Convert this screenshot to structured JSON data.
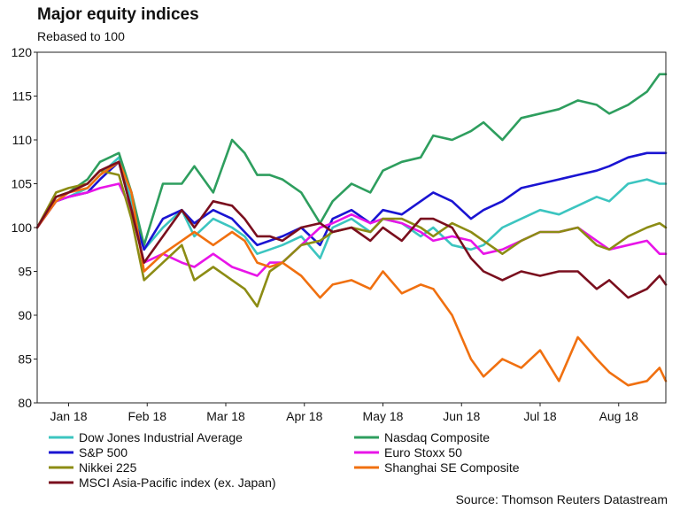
{
  "chart_data": {
    "type": "line",
    "title": "Major equity indices",
    "subtitle": "Rebased to 100",
    "source": "Source: Thomson Reuters Datastream",
    "xlabel": "",
    "ylabel": "",
    "ylim": [
      80,
      120
    ],
    "yticks": [
      80,
      85,
      90,
      95,
      100,
      105,
      110,
      115,
      120
    ],
    "xlim": [
      0,
      100
    ],
    "xticks": [
      {
        "label": "Jan 18",
        "x": 5
      },
      {
        "label": "Feb 18",
        "x": 17.5
      },
      {
        "label": "Mar 18",
        "x": 30
      },
      {
        "label": "Apr 18",
        "x": 42.5
      },
      {
        "label": "May 18",
        "x": 55
      },
      {
        "label": "Jun 18",
        "x": 67.5
      },
      {
        "label": "Jul 18",
        "x": 80
      },
      {
        "label": "Aug 18",
        "x": 92.5
      }
    ],
    "grid": false,
    "legend_position": "bottom",
    "series": [
      {
        "name": "Dow Jones Industrial Average",
        "color": "#3cc5c0",
        "x": [
          0,
          3,
          5,
          8,
          10,
          13,
          15,
          17,
          20,
          23,
          25,
          28,
          31,
          33,
          35,
          37,
          39,
          42,
          45,
          47,
          50,
          53,
          55,
          58,
          61,
          63,
          66,
          69,
          71,
          74,
          77,
          80,
          83,
          86,
          89,
          91,
          94,
          97,
          99,
          100
        ],
        "values": [
          100,
          103,
          103.5,
          104.5,
          106,
          108,
          103,
          97.5,
          100,
          102,
          99,
          101,
          100,
          99,
          97,
          97.5,
          98,
          99,
          96.5,
          100,
          101,
          99.5,
          101,
          100.5,
          99,
          100,
          98,
          97.5,
          98,
          100,
          101,
          102,
          101.5,
          102.5,
          103.5,
          103,
          105,
          105.5,
          105,
          105
        ]
      },
      {
        "name": "Nasdaq Composite",
        "color": "#2e9e5e",
        "x": [
          0,
          3,
          5,
          8,
          10,
          13,
          15,
          17,
          20,
          23,
          25,
          28,
          31,
          33,
          35,
          37,
          39,
          42,
          45,
          47,
          50,
          53,
          55,
          58,
          61,
          63,
          66,
          69,
          71,
          74,
          77,
          80,
          83,
          86,
          89,
          91,
          94,
          97,
          99,
          100
        ],
        "values": [
          100,
          103.5,
          104,
          105.5,
          107.5,
          108.5,
          104,
          98,
          105,
          105,
          107,
          104,
          110,
          108.5,
          106,
          106,
          105.5,
          104,
          100.5,
          103,
          105,
          104,
          106.5,
          107.5,
          108,
          110.5,
          110,
          111,
          112,
          110,
          112.5,
          113,
          113.5,
          114.5,
          114,
          113,
          114,
          115.5,
          117.5,
          117.5
        ]
      },
      {
        "name": "S&P 500",
        "color": "#1a14d2",
        "x": [
          0,
          3,
          5,
          8,
          10,
          13,
          15,
          17,
          20,
          23,
          25,
          28,
          31,
          33,
          35,
          37,
          39,
          42,
          45,
          47,
          50,
          53,
          55,
          58,
          61,
          63,
          66,
          69,
          71,
          74,
          77,
          80,
          83,
          86,
          89,
          91,
          94,
          97,
          99,
          100
        ],
        "values": [
          100,
          103,
          103.5,
          104,
          105.5,
          107.5,
          102,
          97.5,
          101,
          102,
          100.5,
          102,
          101,
          99.5,
          98,
          98.5,
          99,
          100,
          98,
          101,
          102,
          100.5,
          102,
          101.5,
          103,
          104,
          103,
          101,
          102,
          103,
          104.5,
          105,
          105.5,
          106,
          106.5,
          107,
          108,
          108.5,
          108.5,
          108.5
        ]
      },
      {
        "name": "Euro Stoxx 50",
        "color": "#e815e8",
        "x": [
          0,
          3,
          5,
          8,
          10,
          13,
          15,
          17,
          20,
          23,
          25,
          28,
          31,
          33,
          35,
          37,
          39,
          42,
          45,
          47,
          50,
          53,
          55,
          58,
          61,
          63,
          66,
          69,
          71,
          74,
          77,
          80,
          83,
          86,
          89,
          91,
          94,
          97,
          99,
          100
        ],
        "values": [
          100,
          103,
          103.5,
          104,
          104.5,
          105,
          102,
          96,
          97,
          96,
          95.5,
          97,
          95.5,
          95,
          94.5,
          96,
          96,
          98,
          100,
          100.5,
          101.5,
          100.5,
          101,
          100.5,
          99.5,
          98.5,
          99,
          98.5,
          97,
          97.5,
          98.5,
          99.5,
          99.5,
          100,
          98.5,
          97.5,
          98,
          98.5,
          97,
          97
        ]
      },
      {
        "name": "Nikkei 225",
        "color": "#8c8c14",
        "x": [
          0,
          3,
          5,
          8,
          10,
          13,
          15,
          17,
          20,
          23,
          25,
          28,
          31,
          33,
          35,
          37,
          39,
          42,
          45,
          47,
          50,
          53,
          55,
          58,
          61,
          63,
          66,
          69,
          71,
          74,
          77,
          80,
          83,
          86,
          89,
          91,
          94,
          97,
          99,
          100
        ],
        "values": [
          100,
          104,
          104.5,
          105,
          106.5,
          106,
          101,
          94,
          96,
          98,
          94,
          95.5,
          94,
          93,
          91,
          95,
          96,
          98,
          98.5,
          99.5,
          100,
          99.5,
          101,
          101,
          100,
          99,
          100.5,
          99.5,
          98.5,
          97,
          98.5,
          99.5,
          99.5,
          100,
          98,
          97.5,
          99,
          100,
          100.5,
          100
        ]
      },
      {
        "name": "Shanghai SE Composite",
        "color": "#f07010",
        "x": [
          0,
          3,
          5,
          8,
          10,
          13,
          15,
          17,
          20,
          23,
          25,
          28,
          31,
          33,
          35,
          37,
          39,
          42,
          45,
          47,
          50,
          53,
          55,
          58,
          61,
          63,
          66,
          69,
          71,
          74,
          77,
          80,
          83,
          86,
          89,
          91,
          94,
          97,
          99,
          100
        ],
        "values": [
          100,
          103,
          104,
          104.5,
          106,
          107.5,
          104,
          95,
          97,
          98.5,
          99.5,
          98,
          99.5,
          98.5,
          96,
          95.5,
          96,
          94.5,
          92,
          93.5,
          94,
          93,
          95,
          92.5,
          93.5,
          93,
          90,
          85,
          83,
          85,
          84,
          86,
          82.5,
          87.5,
          85,
          83.5,
          82,
          82.5,
          84,
          82.5
        ]
      },
      {
        "name": "MSCI Asia-Pacific index (ex. Japan)",
        "color": "#7a0f1e",
        "x": [
          0,
          3,
          5,
          8,
          10,
          13,
          15,
          17,
          20,
          23,
          25,
          28,
          31,
          33,
          35,
          37,
          39,
          42,
          45,
          47,
          50,
          53,
          55,
          58,
          61,
          63,
          66,
          69,
          71,
          74,
          77,
          80,
          83,
          86,
          89,
          91,
          94,
          97,
          99,
          100
        ],
        "values": [
          100,
          103.5,
          104,
          105,
          106.5,
          107.5,
          102,
          96,
          99,
          102,
          100,
          103,
          102.5,
          101,
          99,
          99,
          98.5,
          100,
          100.5,
          99.5,
          100,
          98.5,
          100,
          98.5,
          101,
          101,
          100,
          96.5,
          95,
          94,
          95,
          94.5,
          95,
          95,
          93,
          94,
          92,
          93,
          94.5,
          93.5
        ]
      }
    ]
  }
}
